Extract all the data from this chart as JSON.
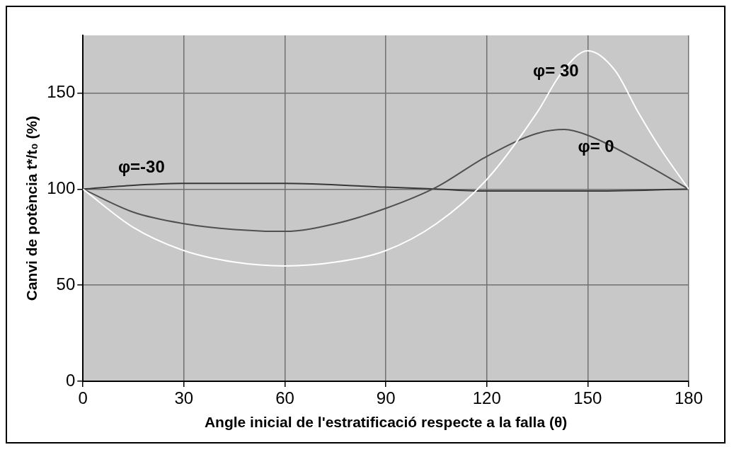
{
  "chart_data": {
    "type": "line",
    "xlabel": "Angle inicial de l'estratificació respecte a la falla (θ)",
    "ylabel": "Canvi de potència t*/t₀ (%)",
    "xlim": [
      0,
      180
    ],
    "xticks": [
      0,
      30,
      60,
      90,
      120,
      150,
      180
    ],
    "ylim": [
      0,
      180
    ],
    "yticks": [
      0,
      50,
      100,
      150
    ],
    "grid": true,
    "line_style": "solid",
    "marker": "none",
    "legend": false,
    "series": [
      {
        "name": "φ= 30",
        "color": "#ffffff",
        "x": [
          0,
          15,
          30,
          45,
          60,
          75,
          90,
          105,
          120,
          135,
          142,
          150,
          158,
          165,
          172,
          180
        ],
        "values": [
          100,
          80,
          68,
          62,
          60,
          62,
          68,
          82,
          105,
          140,
          160,
          172,
          162,
          140,
          120,
          100
        ]
      },
      {
        "name": "φ= 0",
        "color": "#505050",
        "x": [
          0,
          15,
          30,
          45,
          60,
          75,
          90,
          105,
          120,
          135,
          143,
          150,
          165,
          180
        ],
        "values": [
          100,
          88,
          82,
          79,
          78,
          82,
          90,
          101,
          117,
          129,
          131,
          128,
          115,
          100
        ]
      },
      {
        "name": "φ=-30",
        "color": "#383838",
        "x": [
          0,
          15,
          30,
          60,
          90,
          105,
          120,
          150,
          180
        ],
        "values": [
          100,
          102,
          103,
          103,
          101,
          100,
          99,
          99,
          100
        ]
      }
    ]
  }
}
